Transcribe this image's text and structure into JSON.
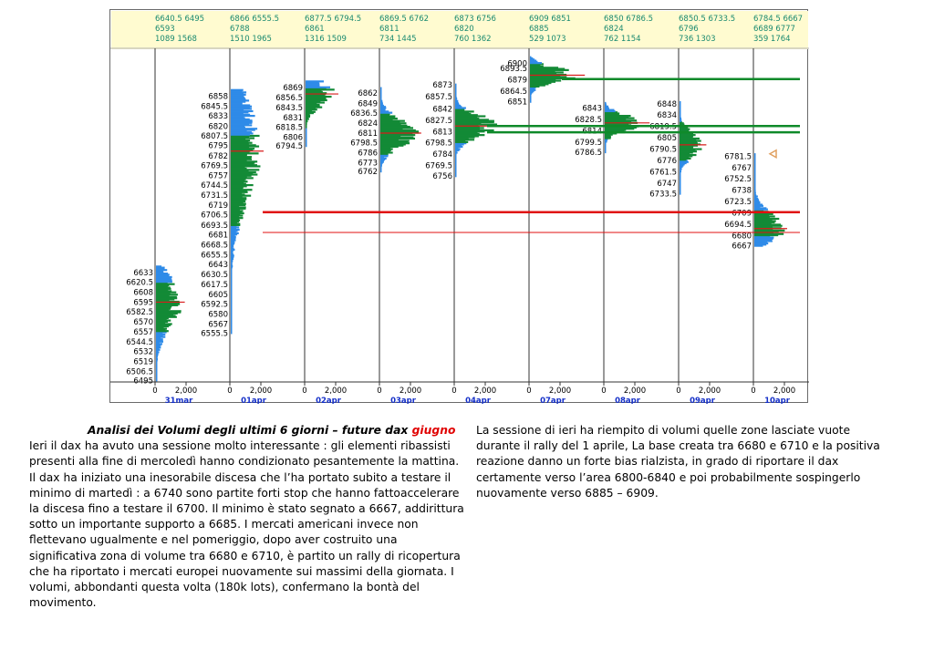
{
  "chart_data": {
    "type": "volume_profile",
    "ylim": [
      6493,
      6910
    ],
    "colors": {
      "value_area": "#138a36",
      "outside_value_area": "#2f8be8",
      "poc_marker": "#d81b1b",
      "header_text": "#1a8a70",
      "header_bg": "#fffbd0",
      "axis_blue": "#1530c8",
      "green_line": "#0f8a2a",
      "red_line": "#e01010",
      "triangle": "#e0a060"
    },
    "sessions": [
      {
        "date": "31mar",
        "header": [
          "6640.5 6495",
          "6593",
          "1089 1568"
        ],
        "price_labels": [
          "6633",
          "6620.5",
          "6608",
          "6595",
          "6582.5",
          "6570",
          "6557",
          "6544.5",
          "6532",
          "6519",
          "6506.5",
          "6495"
        ],
        "low": 6495,
        "high": 6640.5,
        "poc": 6595,
        "va": [
          6557,
          6620.5
        ],
        "peak_width": 26,
        "spread": 45
      },
      {
        "date": "01apr",
        "header": [
          "6866 6555.5",
          "6788",
          "1510 1965"
        ],
        "price_labels": [
          "6858",
          "6845.5",
          "6833",
          "6820",
          "6807.5",
          "6795",
          "6782",
          "6769.5",
          "6757",
          "6744.5",
          "6731.5",
          "6719",
          "6706.5",
          "6693.5",
          "6681",
          "6668.5",
          "6655.5",
          "6643",
          "6630.5",
          "6617.5",
          "6605",
          "6592.5",
          "6580",
          "6567",
          "6555.5"
        ],
        "low": 6555.5,
        "high": 6866,
        "poc": 6788,
        "va": [
          6693.5,
          6807.5
        ],
        "peak_width": 30,
        "spread": 90
      },
      {
        "date": "02apr",
        "header": [
          "6877.5 6794.5",
          "6861",
          "1316 1509"
        ],
        "price_labels": [
          "6869",
          "6856.5",
          "6843.5",
          "6831",
          "6818.5",
          "6806",
          "6794.5"
        ],
        "low": 6794.5,
        "high": 6877.5,
        "poc": 6861,
        "va": [
          6818.5,
          6869
        ],
        "peak_width": 30,
        "spread": 22
      },
      {
        "date": "03apr",
        "header": [
          "6869.5 6762",
          "6811",
          "734 1445"
        ],
        "price_labels": [
          "6862",
          "6849",
          "6836.5",
          "6824",
          "6811",
          "6798.5",
          "6786",
          "6773",
          "6762"
        ],
        "low": 6762,
        "high": 6869.5,
        "poc": 6811,
        "va": [
          6784,
          6836.5
        ],
        "peak_width": 38,
        "spread": 24
      },
      {
        "date": "04apr",
        "header": [
          "6873 6756",
          "6820",
          "760 1362"
        ],
        "price_labels": [
          "6873",
          "6857.5",
          "6842",
          "6827.5",
          "6813",
          "6798.5",
          "6784",
          "6769.5",
          "6756"
        ],
        "low": 6756,
        "high": 6873,
        "poc": 6820,
        "va": [
          6798.5,
          6842
        ],
        "peak_width": 44,
        "spread": 20
      },
      {
        "date": "07apr",
        "header": [
          "6909 6851",
          "6885",
          "529 1073"
        ],
        "price_labels": [
          "6900",
          "6893.5",
          "6879",
          "6864.5",
          "6851"
        ],
        "low": 6851,
        "high": 6909,
        "poc": 6885,
        "va": [
          6870,
          6900
        ],
        "peak_width": 52,
        "spread": 13
      },
      {
        "date": "08apr",
        "header": [
          "6850 6786.5",
          "6824",
          "762 1154"
        ],
        "price_labels": [
          "6843",
          "6828.5",
          "6814",
          "6799.5",
          "6786.5"
        ],
        "low": 6786.5,
        "high": 6850,
        "poc": 6824,
        "va": [
          6804,
          6838
        ],
        "peak_width": 42,
        "spread": 14
      },
      {
        "date": "09apr",
        "header": [
          "6850.5 6733.5",
          "6796",
          "736 1303"
        ],
        "price_labels": [
          "6848",
          "6834",
          "6819.5",
          "6805",
          "6790.5",
          "6776",
          "6761.5",
          "6747",
          "6733.5"
        ],
        "low": 6733.5,
        "high": 6850.5,
        "poc": 6796,
        "va": [
          6776,
          6825
        ],
        "peak_width": 24,
        "spread": 22
      },
      {
        "date": "10apr",
        "header": [
          "6784.5 6667",
          "6689 6777",
          "359 1764"
        ],
        "price_labels": [
          "6781.5",
          "6767",
          "6752.5",
          "6738",
          "6723.5",
          "6709",
          "6694.5",
          "6680",
          "6667"
        ],
        "low": 6667,
        "high": 6784.5,
        "poc": 6689,
        "va": [
          6680,
          6712
        ],
        "peak_width": 30,
        "spread": 28
      }
    ],
    "x_tick_labels": [
      "0",
      "2,000"
    ],
    "levels": [
      {
        "price": 6880,
        "color": "green",
        "from_session": 5,
        "to_end": true
      },
      {
        "price": 6820,
        "color": "green",
        "from_session": 4,
        "to_end": true
      },
      {
        "price": 6812,
        "color": "green",
        "from_session": 4,
        "to_end": true
      },
      {
        "price": 6710,
        "color": "red",
        "from_session": 1,
        "to_end": true
      },
      {
        "price": 6684,
        "color": "red_thin",
        "from_session": 1,
        "to_end": true
      }
    ]
  },
  "commentary": {
    "title_prefix": "Analisi dei Volumi degli ultimi 6 giorni – future dax ",
    "title_contract": "giugno",
    "left_body": "Ieri il dax ha avuto una sessione molto interessante : gli elementi ribassisti presenti alla fine di mercoledì hanno condizionato pesantemente la mattina. Il dax ha iniziato una inesorabile discesa che l’ha portato subito a testare il minimo di martedì : a 6740 sono partite forti stop che hanno fattoaccelerare la discesa fino a testare il 6700. Il minimo è stato segnato a 6667, addirittura sotto un importante supporto a 6685. I mercati americani invece non flettevano ugualmente e nel pomeriggio, dopo aver costruito una significativa zona di volume tra 6680 e 6710, è partito un rally di ricopertura che ha riportato i mercati europei nuovamente sui massimi della giornata. I volumi, abbondanti questa volta (180k lots), confermano la bontà del movimento.",
    "right_body": "La sessione di ieri ha riempito di volumi quelle zone lasciate vuote durante il rally del 1 aprile, La base creata tra 6680 e 6710 e la positiva reazione danno un forte bias rialzista, in grado di riportare il dax certamente verso l’area 6800-6840 e poi probabilmente sospingerlo nuovamente verso 6885 – 6909."
  }
}
